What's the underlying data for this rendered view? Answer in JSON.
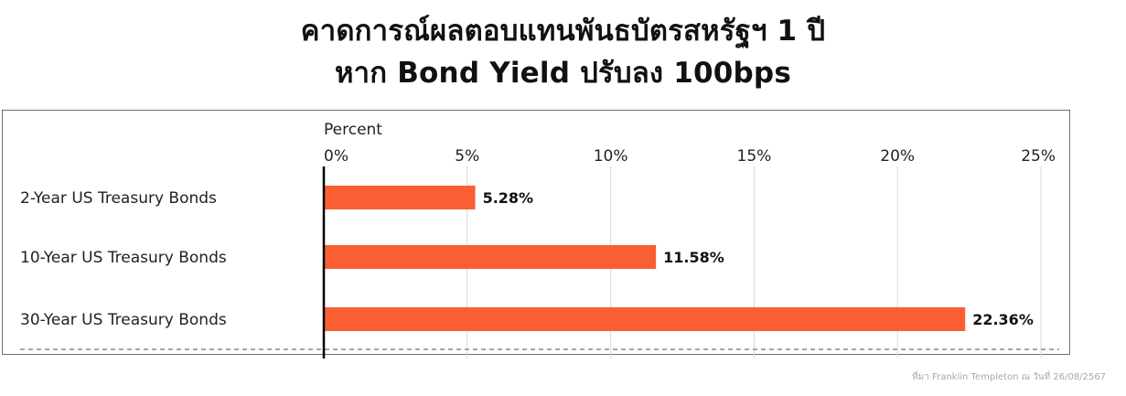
{
  "title": {
    "line1": "คาดการณ์ผลตอบแทนพันธบัตรสหรัฐฯ 1 ปี",
    "line2": "หาก Bond Yield ปรับลง 100bps"
  },
  "source": "ที่มา  Franklin  Templeton ณ วันที่ 26/08/2567",
  "colors": {
    "bar": "#fa5f34",
    "grid": "#d9d9d9",
    "axis": "#000000",
    "text": "#222222"
  },
  "chart_data": {
    "type": "bar",
    "orientation": "horizontal",
    "xlabel": "Percent",
    "xlim": [
      0,
      25
    ],
    "xticks": [
      {
        "value": 0,
        "label": "0%"
      },
      {
        "value": 5,
        "label": "5%"
      },
      {
        "value": 10,
        "label": "10%"
      },
      {
        "value": 15,
        "label": "15%"
      },
      {
        "value": 20,
        "label": "20%"
      },
      {
        "value": 25,
        "label": "25%"
      }
    ],
    "categories": [
      "2-Year US Treasury Bonds",
      "10-Year US Treasury Bonds",
      "30-Year US Treasury Bonds"
    ],
    "values": [
      5.28,
      11.58,
      22.36
    ],
    "data_labels": [
      "5.28%",
      "11.58%",
      "22.36%"
    ],
    "grid": true,
    "legend": "none"
  }
}
